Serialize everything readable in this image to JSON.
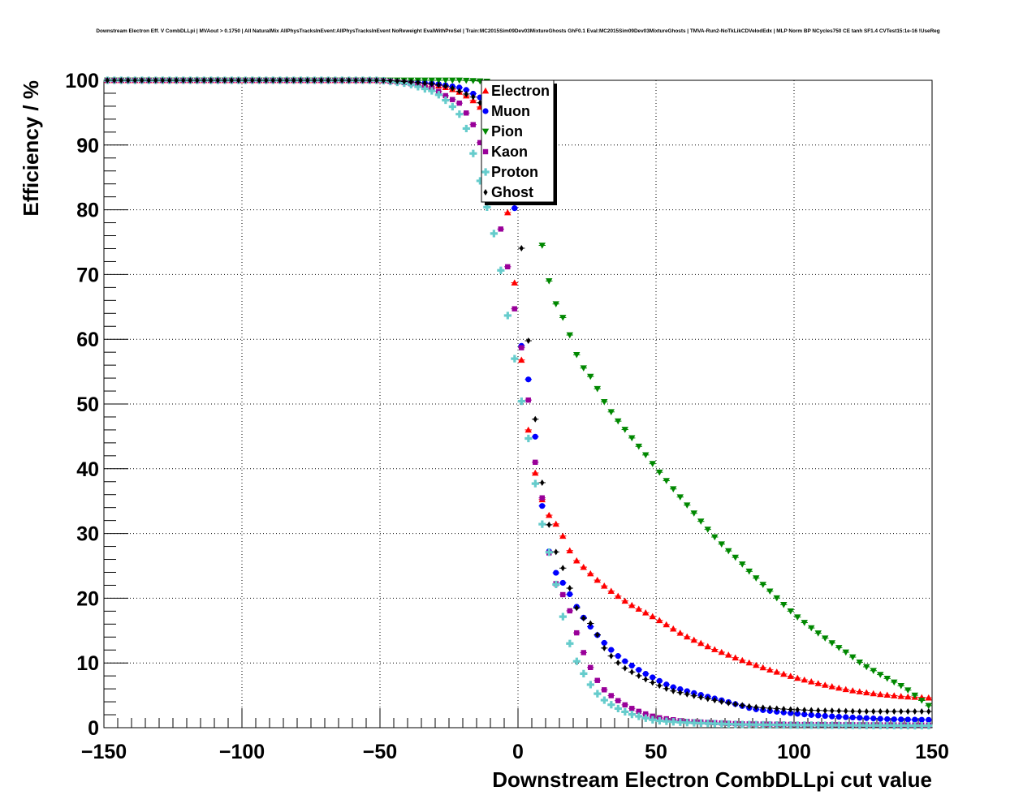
{
  "chart_data": {
    "type": "scatter",
    "title": "Downstream Electron Eff. V CombDLLpi | MVAout > 0.1750 | All NaturalMix AllPhysTracksInEvent:AllPhysTracksInEvent NoReweight EvalWithPreSel | Train:MC2015Sim09Dev03MixtureGhosts GhF0.1 Eval:MC2015Sim09Dev03MixtureGhosts | TMVA-Run2-NoTkLikCDVelodEdx | MLP Norm BP NCycles750 CE tanh SF1.4 CVTest15:1e-16 !UseReg",
    "xlabel": "Downstream Electron CombDLLpi cut value",
    "ylabel": "Efficiency / %",
    "xlim": [
      -150,
      150
    ],
    "ylim": [
      0,
      100
    ],
    "x_ticks": [
      "−150",
      "−100",
      "−50",
      "0",
      "50",
      "100",
      "150"
    ],
    "x_tick_values": [
      -150,
      -100,
      -50,
      0,
      50,
      100,
      150
    ],
    "y_ticks": [
      "0",
      "10",
      "20",
      "30",
      "40",
      "50",
      "60",
      "70",
      "80",
      "90",
      "100"
    ],
    "y_tick_values": [
      0,
      10,
      20,
      30,
      40,
      50,
      60,
      70,
      80,
      90,
      100
    ],
    "grid": true,
    "legend_position": "top-center",
    "series": [
      {
        "name": "Electron",
        "color": "#ff0000",
        "marker": "triangle-up",
        "points": [
          [
            -150,
            100
          ],
          [
            -50,
            100
          ],
          [
            -40,
            99.8
          ],
          [
            -30,
            99.3
          ],
          [
            -25,
            98.8
          ],
          [
            -20,
            98
          ],
          [
            -15,
            96.5
          ],
          [
            -10,
            94
          ],
          [
            -5,
            85
          ],
          [
            0,
            63.3
          ],
          [
            2.5,
            50.3
          ],
          [
            5,
            41.7
          ],
          [
            7.5,
            37
          ],
          [
            10,
            33.5
          ],
          [
            15,
            30.8
          ],
          [
            17.5,
            28.4
          ],
          [
            20,
            26.3
          ],
          [
            25,
            24.3
          ],
          [
            30,
            22.3
          ],
          [
            35,
            20.7
          ],
          [
            40,
            19.2
          ],
          [
            50,
            16.9
          ],
          [
            60,
            14.3
          ],
          [
            70,
            12.3
          ],
          [
            80,
            10.6
          ],
          [
            90,
            9.1
          ],
          [
            100,
            7.8
          ],
          [
            110,
            6.7
          ],
          [
            120,
            5.8
          ],
          [
            130,
            5.2
          ],
          [
            140,
            4.8
          ],
          [
            150,
            4.6
          ]
        ]
      },
      {
        "name": "Muon",
        "color": "#0000ff",
        "marker": "circle",
        "points": [
          [
            -150,
            100
          ],
          [
            -50,
            100
          ],
          [
            -40,
            99.8
          ],
          [
            -30,
            99.5
          ],
          [
            -20,
            98.8
          ],
          [
            -10,
            96.5
          ],
          [
            -5,
            90
          ],
          [
            -1,
            79.6
          ],
          [
            1,
            59.5
          ],
          [
            5,
            51.2
          ],
          [
            7.5,
            38.7
          ],
          [
            10,
            29.8
          ],
          [
            12.5,
            24.7
          ],
          [
            17.5,
            21.6
          ],
          [
            22.5,
            17.7
          ],
          [
            27.5,
            14.9
          ],
          [
            32.5,
            12.5
          ],
          [
            37.5,
            10.6
          ],
          [
            45,
            8.6
          ],
          [
            55,
            6.4
          ],
          [
            65,
            5.2
          ],
          [
            75,
            4.1
          ],
          [
            85,
            2.9
          ],
          [
            95,
            2.4
          ],
          [
            105,
            2
          ],
          [
            115,
            1.7
          ],
          [
            125,
            1.5
          ],
          [
            135,
            1.3
          ],
          [
            150,
            1.2
          ]
        ]
      },
      {
        "name": "Pion",
        "color": "#008800",
        "marker": "triangle-down",
        "points": [
          [
            -150,
            100
          ],
          [
            -20,
            100
          ],
          [
            -10,
            99.8
          ],
          [
            -5,
            99
          ],
          [
            0,
            97
          ],
          [
            5,
            88
          ],
          [
            7.5,
            77.5
          ],
          [
            10,
            71.5
          ],
          [
            12.5,
            66.5
          ],
          [
            17.5,
            62.3
          ],
          [
            20,
            59
          ],
          [
            22.5,
            56.2
          ],
          [
            27.5,
            53.6
          ],
          [
            30,
            51.1
          ],
          [
            35,
            48
          ],
          [
            40,
            45.4
          ],
          [
            45,
            42.8
          ],
          [
            50,
            40.1
          ],
          [
            55,
            37.5
          ],
          [
            60,
            35
          ],
          [
            65,
            32.5
          ],
          [
            70,
            30
          ],
          [
            75,
            27.8
          ],
          [
            80,
            25.8
          ],
          [
            85,
            23.6
          ],
          [
            90,
            21.6
          ],
          [
            95,
            19.5
          ],
          [
            100,
            17.5
          ],
          [
            105,
            15.8
          ],
          [
            110,
            14.2
          ],
          [
            115,
            12.7
          ],
          [
            120,
            11.3
          ],
          [
            125,
            9.7
          ],
          [
            130,
            8.5
          ],
          [
            135,
            7.3
          ],
          [
            140,
            6.2
          ],
          [
            150,
            3
          ]
        ]
      },
      {
        "name": "Kaon",
        "color": "#990099",
        "marker": "square",
        "points": [
          [
            -150,
            100
          ],
          [
            -50,
            100
          ],
          [
            -40,
            99.6
          ],
          [
            -30,
            98.6
          ],
          [
            -25,
            97.3
          ],
          [
            -20,
            96.2
          ],
          [
            -17.5,
            93.7
          ],
          [
            -15,
            92.6
          ],
          [
            -5,
            74.8
          ],
          [
            -2.5,
            67.6
          ],
          [
            1,
            59.5
          ],
          [
            4,
            49.8
          ],
          [
            5,
            41.9
          ],
          [
            7.5,
            40.1
          ],
          [
            10,
            30.9
          ],
          [
            12.5,
            23.1
          ],
          [
            17.5,
            19.7
          ],
          [
            20,
            16.4
          ],
          [
            22.5,
            12.9
          ],
          [
            25,
            10.3
          ],
          [
            27.5,
            8.3
          ],
          [
            30,
            6.3
          ],
          [
            35,
            4.5
          ],
          [
            40,
            3.2
          ],
          [
            45,
            2.3
          ],
          [
            50,
            1.6
          ],
          [
            60,
            1
          ],
          [
            80,
            0.6
          ],
          [
            100,
            0.5
          ],
          [
            150,
            0.4
          ]
        ]
      },
      {
        "name": "Proton",
        "color": "#66cccc",
        "marker": "plus",
        "points": [
          [
            -150,
            100
          ],
          [
            -50,
            100
          ],
          [
            -40,
            99.5
          ],
          [
            -30,
            98.2
          ],
          [
            -25,
            96.5
          ],
          [
            -20,
            94.2
          ],
          [
            -17.5,
            90.9
          ],
          [
            -15,
            86.5
          ],
          [
            -7.5,
            74.3
          ],
          [
            -5,
            67
          ],
          [
            -2,
            59
          ],
          [
            1,
            51
          ],
          [
            5,
            41.8
          ],
          [
            7.5,
            33.6
          ],
          [
            12,
            25.8
          ],
          [
            15,
            19.5
          ],
          [
            17.5,
            14.8
          ],
          [
            20,
            11.2
          ],
          [
            22.5,
            9.3
          ],
          [
            25,
            7.4
          ],
          [
            27.5,
            5.9
          ],
          [
            30,
            4.6
          ],
          [
            35,
            3.2
          ],
          [
            40,
            2.2
          ],
          [
            45,
            1.6
          ],
          [
            50,
            1.1
          ],
          [
            60,
            0.8
          ],
          [
            80,
            0.5
          ],
          [
            100,
            0.4
          ],
          [
            150,
            0.3
          ]
        ]
      },
      {
        "name": "Ghost",
        "color": "#000000",
        "marker": "diamond",
        "points": [
          [
            -150,
            100
          ],
          [
            -50,
            100
          ],
          [
            -40,
            99.8
          ],
          [
            -30,
            99.4
          ],
          [
            -25,
            99
          ],
          [
            -20,
            98.1
          ],
          [
            -15,
            97.2
          ],
          [
            -10,
            94.5
          ],
          [
            -5,
            89.5
          ],
          [
            0,
            83
          ],
          [
            2,
            68.7
          ],
          [
            5,
            53.4
          ],
          [
            7.5,
            41.9
          ],
          [
            10,
            33.8
          ],
          [
            13,
            27.9
          ],
          [
            17.5,
            23.4
          ],
          [
            20,
            19.7
          ],
          [
            22.5,
            17.3
          ],
          [
            27.5,
            15.7
          ],
          [
            30,
            13
          ],
          [
            32.5,
            11.6
          ],
          [
            37.5,
            9.5
          ],
          [
            42.5,
            8.3
          ],
          [
            47.5,
            7.2
          ],
          [
            55,
            5.8
          ],
          [
            65,
            4.8
          ],
          [
            75,
            3.9
          ],
          [
            85,
            3.2
          ],
          [
            95,
            2.9
          ],
          [
            105,
            2.7
          ],
          [
            115,
            2.6
          ],
          [
            125,
            2.5
          ],
          [
            135,
            2.5
          ],
          [
            150,
            2.5
          ]
        ]
      }
    ]
  }
}
